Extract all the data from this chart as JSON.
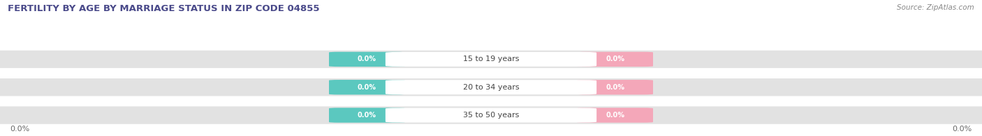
{
  "title": "FERTILITY BY AGE BY MARRIAGE STATUS IN ZIP CODE 04855",
  "source": "Source: ZipAtlas.com",
  "categories": [
    "15 to 19 years",
    "20 to 34 years",
    "35 to 50 years"
  ],
  "married_values": [
    0.0,
    0.0,
    0.0
  ],
  "unmarried_values": [
    0.0,
    0.0,
    0.0
  ],
  "married_color": "#5BC8BF",
  "unmarried_color": "#F4A7B9",
  "bar_bg_color": "#E2E2E2",
  "fig_bg_color": "#FFFFFF",
  "title_color": "#4A4A8A",
  "source_color": "#888888",
  "label_color": "#444444",
  "value_color": "#FFFFFF",
  "legend_label_color": "#555555",
  "title_fontsize": 9.5,
  "source_fontsize": 7.5,
  "bar_label_fontsize": 8,
  "value_fontsize": 7,
  "legend_fontsize": 8.5,
  "x_left_label": "0.0%",
  "x_right_label": "0.0%"
}
